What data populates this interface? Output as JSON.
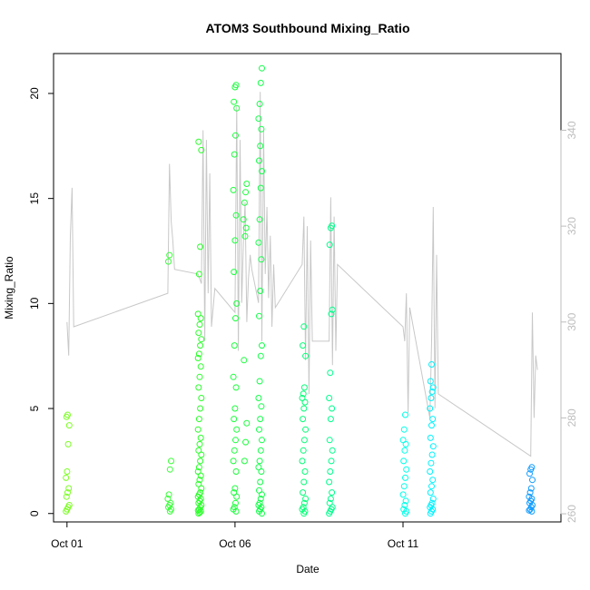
{
  "chart_data": {
    "type": "scatter",
    "title": "ATOM3 Southbound Mixing_Ratio",
    "xlabel": "Date",
    "ylabel": "Mixing_Ratio",
    "x_ticks": [
      "Oct 01",
      "Oct 06",
      "Oct 11"
    ],
    "x_tick_values": [
      0,
      5,
      10
    ],
    "x_range": [
      -0.4,
      14.7
    ],
    "y_left_ticks": [
      0,
      5,
      10,
      15,
      20
    ],
    "y_left_range": [
      -0.4,
      21.9
    ],
    "y_right_ticks": [
      260,
      280,
      300,
      320,
      340
    ],
    "y_right_range": [
      258.3,
      356
    ],
    "grid": false,
    "legend": "none",
    "colors": {
      "line": "#c8c8c8",
      "right_axis": "#bdbdbd",
      "frame": "#000000"
    },
    "point_groups": [
      {
        "x": 0.02,
        "color": "#7cff24",
        "values": [
          0.1,
          0.2,
          0.3,
          0.4,
          0.8,
          1.0,
          1.2,
          1.7,
          2.0,
          3.3,
          4.2,
          4.6,
          4.7
        ]
      },
      {
        "x": 3.05,
        "color": "#3cff3c",
        "values": [
          0.1,
          0.2,
          0.3,
          0.4,
          0.5,
          0.7,
          0.9,
          2.1,
          2.5,
          12.0,
          12.3
        ]
      },
      {
        "x": 3.95,
        "color": "#2bff2b",
        "values": [
          0.0,
          0.05,
          0.1,
          0.15,
          0.2,
          0.3,
          0.4,
          0.5,
          0.6,
          0.7,
          0.8,
          0.9,
          1.0,
          1.2,
          1.4,
          1.6,
          1.8,
          2.0,
          2.2,
          2.5,
          2.8,
          3.0,
          3.3,
          3.6,
          4.0,
          4.5,
          5.0,
          5.5,
          6.0,
          6.5,
          7.0,
          7.4,
          7.6,
          8.0,
          8.3,
          8.6,
          9.0,
          9.3,
          9.5,
          11.4,
          12.7,
          17.3,
          17.7
        ]
      },
      {
        "x": 5.0,
        "color": "#1cff3c",
        "values": [
          0.1,
          0.2,
          0.3,
          0.5,
          0.8,
          1.0,
          1.2,
          2.0,
          2.5,
          3.0,
          3.5,
          4.0,
          4.5,
          5.0,
          6.0,
          6.5,
          8.0,
          9.3,
          10.0,
          11.5,
          13.0,
          14.2,
          15.4,
          17.1,
          18.0,
          19.3,
          19.6,
          20.3,
          20.4
        ]
      },
      {
        "x": 5.3,
        "color": "#1cff3c",
        "values": [
          2.5,
          3.4,
          4.3,
          7.3,
          13.2,
          13.6,
          14.0,
          14.8,
          15.3,
          15.7
        ]
      },
      {
        "x": 5.75,
        "color": "#14ff4a",
        "values": [
          0.0,
          0.1,
          0.2,
          0.3,
          0.4,
          0.5,
          0.7,
          0.9,
          1.1,
          1.5,
          2.0,
          2.2,
          2.5,
          3.0,
          3.5,
          4.0,
          4.5,
          5.1,
          5.5,
          6.3,
          7.5,
          8.0,
          9.4,
          10.6,
          12.1,
          12.9,
          14.0,
          15.5,
          16.3,
          16.8,
          17.5,
          18.3,
          18.8,
          19.5,
          20.5,
          21.2
        ]
      },
      {
        "x": 7.05,
        "color": "#06ff78",
        "values": [
          0.0,
          0.1,
          0.2,
          0.3,
          0.5,
          0.7,
          1.0,
          1.5,
          2.0,
          2.5,
          3.0,
          3.5,
          4.0,
          4.5,
          5.0,
          5.3,
          5.5,
          5.7,
          6.0,
          7.5,
          8.0,
          8.9
        ]
      },
      {
        "x": 7.85,
        "color": "#00ff8c",
        "values": [
          0.0,
          0.1,
          0.2,
          0.3,
          0.5,
          0.7,
          1.0,
          1.5,
          2.0,
          2.5,
          3.0,
          3.5,
          4.5,
          5.0,
          5.5,
          6.7,
          9.5,
          9.7,
          12.8,
          13.6,
          13.7
        ]
      },
      {
        "x": 10.05,
        "color": "#00ffe8",
        "values": [
          0.0,
          0.1,
          0.2,
          0.4,
          0.6,
          0.9,
          1.3,
          1.7,
          2.1,
          2.5,
          3.0,
          3.3,
          3.5,
          4.0,
          4.7
        ]
      },
      {
        "x": 10.85,
        "color": "#00f2ff",
        "values": [
          0.0,
          0.1,
          0.2,
          0.3,
          0.4,
          0.5,
          0.7,
          1.0,
          1.3,
          1.6,
          2.0,
          2.4,
          2.8,
          3.2,
          3.6,
          4.2,
          4.5,
          5.0,
          5.5,
          5.8,
          6.0,
          6.3,
          7.1
        ]
      },
      {
        "x": 13.8,
        "color": "#109cff",
        "values": [
          0.1,
          0.15,
          0.2,
          0.3,
          0.4,
          0.5,
          0.6,
          0.7,
          0.8,
          1.0,
          1.2,
          1.6,
          1.9,
          2.1,
          2.2
        ]
      }
    ],
    "line_series": {
      "axis": "right",
      "x": [
        0.0,
        0.05,
        0.1,
        0.15,
        0.2,
        3.0,
        3.05,
        3.1,
        3.15,
        3.2,
        3.9,
        4.0,
        4.05,
        4.1,
        4.15,
        4.2,
        4.25,
        4.3,
        4.4,
        5.0,
        5.05,
        5.1,
        5.15,
        5.2,
        5.25,
        5.3,
        5.35,
        5.4,
        5.45,
        5.5,
        5.7,
        5.75,
        5.8,
        5.85,
        5.9,
        5.95,
        6.0,
        6.05,
        6.1,
        6.15,
        6.2,
        7.0,
        7.05,
        7.1,
        7.15,
        7.2,
        7.25,
        7.3,
        7.8,
        7.85,
        7.9,
        7.95,
        8.0,
        8.05,
        10.0,
        10.05,
        10.1,
        10.15,
        10.2,
        10.8,
        10.85,
        10.9,
        10.95,
        11.0,
        11.05,
        13.8,
        13.85,
        13.9,
        13.95,
        14.0
      ],
      "y": [
        300,
        293,
        318,
        328,
        299,
        306,
        333,
        321,
        317,
        311,
        310,
        308,
        340,
        296,
        338,
        306,
        331,
        299,
        307,
        302,
        345,
        294,
        338,
        304,
        317,
        325,
        300,
        309,
        314,
        311,
        304,
        348,
        296,
        340,
        310,
        324,
        305,
        318,
        299,
        312,
        303,
        312,
        322,
        292,
        320,
        285,
        317,
        296,
        296,
        326,
        291,
        322,
        294,
        312,
        299,
        296,
        306,
        281,
        303,
        280,
        296,
        324,
        282,
        314,
        285,
        272,
        302,
        280,
        293,
        290
      ]
    }
  }
}
